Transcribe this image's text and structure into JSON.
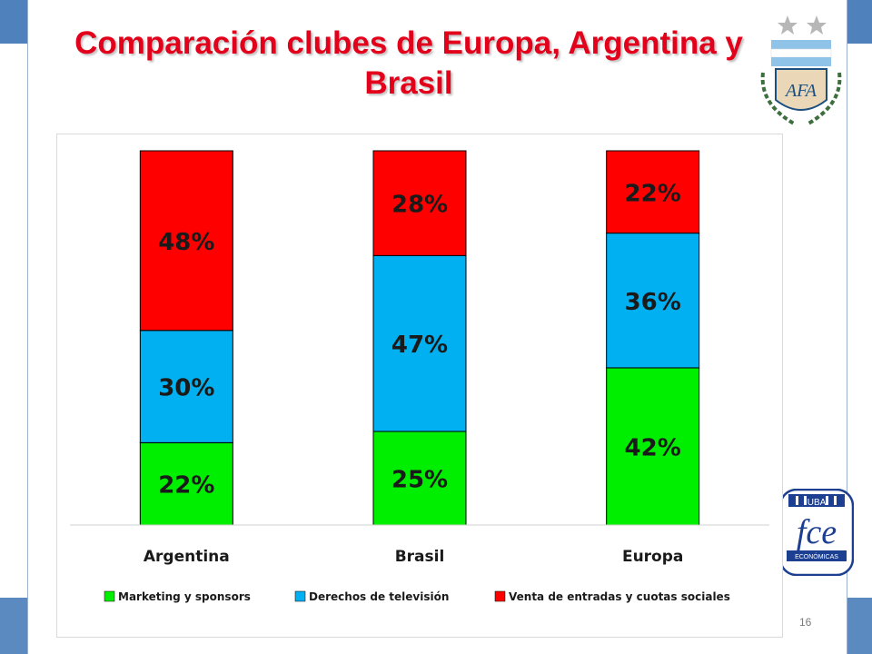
{
  "title": "Comparación clubes de Europa, Argentina y Brasil",
  "page_number": "16",
  "colors": {
    "marketing": "#00ee00",
    "tv": "#00b0f0",
    "tickets": "#ff0000",
    "title": "#e3001b",
    "frame": "#4f81bd"
  },
  "logos": {
    "afa_text": "AFA",
    "fce_text": "fce",
    "fce_uba": "UBA",
    "fce_sub": "ECONÓMICAS"
  },
  "chart_data": {
    "type": "bar",
    "stacked": true,
    "percent": true,
    "title": "",
    "xlabel": "",
    "ylabel": "",
    "ylim": [
      0,
      100
    ],
    "grid": false,
    "legend": "bottom",
    "categories": [
      "Argentina",
      "Brasil",
      "Europa"
    ],
    "series": [
      {
        "name": "Marketing y sponsors",
        "values": [
          22,
          25,
          42
        ],
        "labels": [
          "22%",
          "25%",
          "42%"
        ]
      },
      {
        "name": "Derechos de televisión",
        "values": [
          30,
          47,
          36
        ],
        "labels": [
          "30%",
          "47%",
          "36%"
        ]
      },
      {
        "name": "Venta de entradas y cuotas sociales",
        "values": [
          48,
          28,
          22
        ],
        "labels": [
          "48%",
          "28%",
          "22%"
        ]
      }
    ]
  }
}
